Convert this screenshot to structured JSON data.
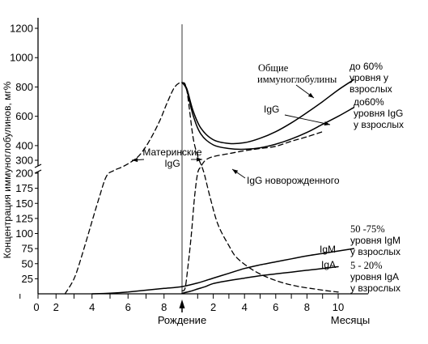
{
  "chart_data": {
    "type": "line",
    "ylabel": "Концентрация иммуноглобулинов, мг%",
    "y_upper_ticks": [
      300,
      400,
      600,
      800,
      1000,
      1200
    ],
    "y_lower_ticks": [
      25,
      50,
      75,
      100,
      125,
      150,
      175,
      200
    ],
    "prenatal_ticks": [
      {
        "x": 0,
        "label": "0"
      },
      {
        "x": 2,
        "label": "2"
      },
      {
        "x": 4,
        "label": "4"
      },
      {
        "x": 6,
        "label": "6"
      },
      {
        "x": 8,
        "label": "8"
      }
    ],
    "postnatal_ticks": [
      {
        "x": 2,
        "label": "2"
      },
      {
        "x": 4,
        "label": "4"
      },
      {
        "x": 6,
        "label": "6"
      },
      {
        "x": 8,
        "label": "8"
      },
      {
        "x": 10,
        "label": "10"
      }
    ],
    "birth_label": "Рождение",
    "months_label": "Месяцы",
    "series": [
      {
        "name": "Общие иммуноглобулины",
        "style": "solid",
        "points": [
          [
            0.0,
            830
          ],
          [
            0.3,
            790
          ],
          [
            0.7,
            640
          ],
          [
            1.2,
            520
          ],
          [
            2.0,
            440
          ],
          [
            3.0,
            415
          ],
          [
            4.0,
            420
          ],
          [
            5.0,
            450
          ],
          [
            6.0,
            495
          ],
          [
            7.0,
            555
          ],
          [
            8.0,
            625
          ],
          [
            9.0,
            700
          ],
          [
            10.0,
            780
          ],
          [
            11.0,
            850
          ]
        ]
      },
      {
        "name": "IgG",
        "style": "solid",
        "points": [
          [
            0.0,
            830
          ],
          [
            0.3,
            780
          ],
          [
            0.7,
            610
          ],
          [
            1.2,
            480
          ],
          [
            2.0,
            405
          ],
          [
            3.0,
            380
          ],
          [
            4.0,
            375
          ],
          [
            5.0,
            385
          ],
          [
            6.0,
            410
          ],
          [
            7.0,
            445
          ],
          [
            8.0,
            490
          ],
          [
            9.0,
            545
          ],
          [
            10.0,
            600
          ],
          [
            11.0,
            660
          ]
        ]
      },
      {
        "name": "Материнские IgG",
        "style": "dashed",
        "points": [
          [
            -6.5,
            0
          ],
          [
            -6.0,
            25
          ],
          [
            -5.6,
            60
          ],
          [
            -5.1,
            110
          ],
          [
            -4.6,
            160
          ],
          [
            -4.2,
            195
          ],
          [
            -3.8,
            220
          ],
          [
            -3.3,
            250
          ],
          [
            -2.8,
            290
          ],
          [
            -2.4,
            330
          ],
          [
            -2.0,
            395
          ],
          [
            -1.6,
            480
          ],
          [
            -1.2,
            580
          ],
          [
            -0.8,
            700
          ],
          [
            -0.4,
            800
          ],
          [
            0.0,
            830
          ],
          [
            0.3,
            780
          ],
          [
            0.7,
            460
          ],
          [
            1.0,
            330
          ],
          [
            1.2,
            270
          ],
          [
            1.4,
            205
          ],
          [
            1.8,
            160
          ],
          [
            2.3,
            115
          ],
          [
            3.0,
            80
          ],
          [
            3.5,
            60
          ],
          [
            4.5,
            40
          ],
          [
            5.5,
            27
          ],
          [
            6.5,
            18
          ],
          [
            7.5,
            12
          ],
          [
            8.5,
            8
          ],
          [
            9.3,
            5
          ],
          [
            10.0,
            3
          ]
        ]
      },
      {
        "name": "IgG новорожденного",
        "style": "dashed",
        "points": [
          [
            0.0,
            5
          ],
          [
            0.2,
            10
          ],
          [
            0.4,
            50
          ],
          [
            0.6,
            100
          ],
          [
            0.8,
            160
          ],
          [
            1.0,
            200
          ],
          [
            1.2,
            250
          ],
          [
            1.5,
            300
          ],
          [
            2.0,
            325
          ],
          [
            3.0,
            345
          ],
          [
            4.0,
            365
          ],
          [
            5.0,
            380
          ],
          [
            6.0,
            395
          ],
          [
            7.0,
            430
          ],
          [
            8.0,
            460
          ],
          [
            9.0,
            495
          ]
        ]
      },
      {
        "name": "IgM",
        "style": "solid",
        "points": [
          [
            -5.0,
            0
          ],
          [
            -4.0,
            1
          ],
          [
            -3.0,
            3
          ],
          [
            -2.0,
            6
          ],
          [
            -1.0,
            9
          ],
          [
            0.0,
            12
          ],
          [
            1.0,
            18
          ],
          [
            2.0,
            26
          ],
          [
            3.0,
            34
          ],
          [
            4.0,
            42
          ],
          [
            5.0,
            48
          ],
          [
            6.0,
            53
          ],
          [
            7.0,
            58
          ],
          [
            8.0,
            63
          ],
          [
            9.0,
            67
          ],
          [
            10.0,
            71
          ],
          [
            11.0,
            75
          ]
        ]
      },
      {
        "name": "IgA",
        "style": "solid",
        "points": [
          [
            0.0,
            1
          ],
          [
            0.5,
            4
          ],
          [
            1.0,
            8
          ],
          [
            1.5,
            12
          ],
          [
            2.0,
            17
          ],
          [
            3.0,
            22
          ],
          [
            4.0,
            26
          ],
          [
            5.0,
            30
          ],
          [
            6.0,
            33
          ],
          [
            7.0,
            36
          ],
          [
            8.0,
            39
          ],
          [
            9.0,
            42
          ],
          [
            10.0,
            45
          ]
        ]
      }
    ],
    "annotations": {
      "total_line1": "Общие",
      "total_line2": "иммуноглобулины",
      "total_pct1": "до 60%",
      "total_pct2": "уровня у",
      "total_pct3": "взрослых",
      "igg": "IgG",
      "igg_pct1": "до60%",
      "igg_pct2": "уровня IgG",
      "igg_pct3": "у взрослых",
      "maternal1": "Материнские",
      "maternal2": "IgG",
      "newborn": "IgG новорожденного",
      "igm": "IgM",
      "igm_pct1": "50 -75%",
      "igm_pct2": "уровня IgM",
      "igm_pct3": "у взрослых",
      "iga": "IgA",
      "iga_pct1": "5 - 20%",
      "iga_pct2": "уровня IgA",
      "iga_pct3": "у взрослых"
    },
    "grid": false,
    "legend": "none"
  }
}
